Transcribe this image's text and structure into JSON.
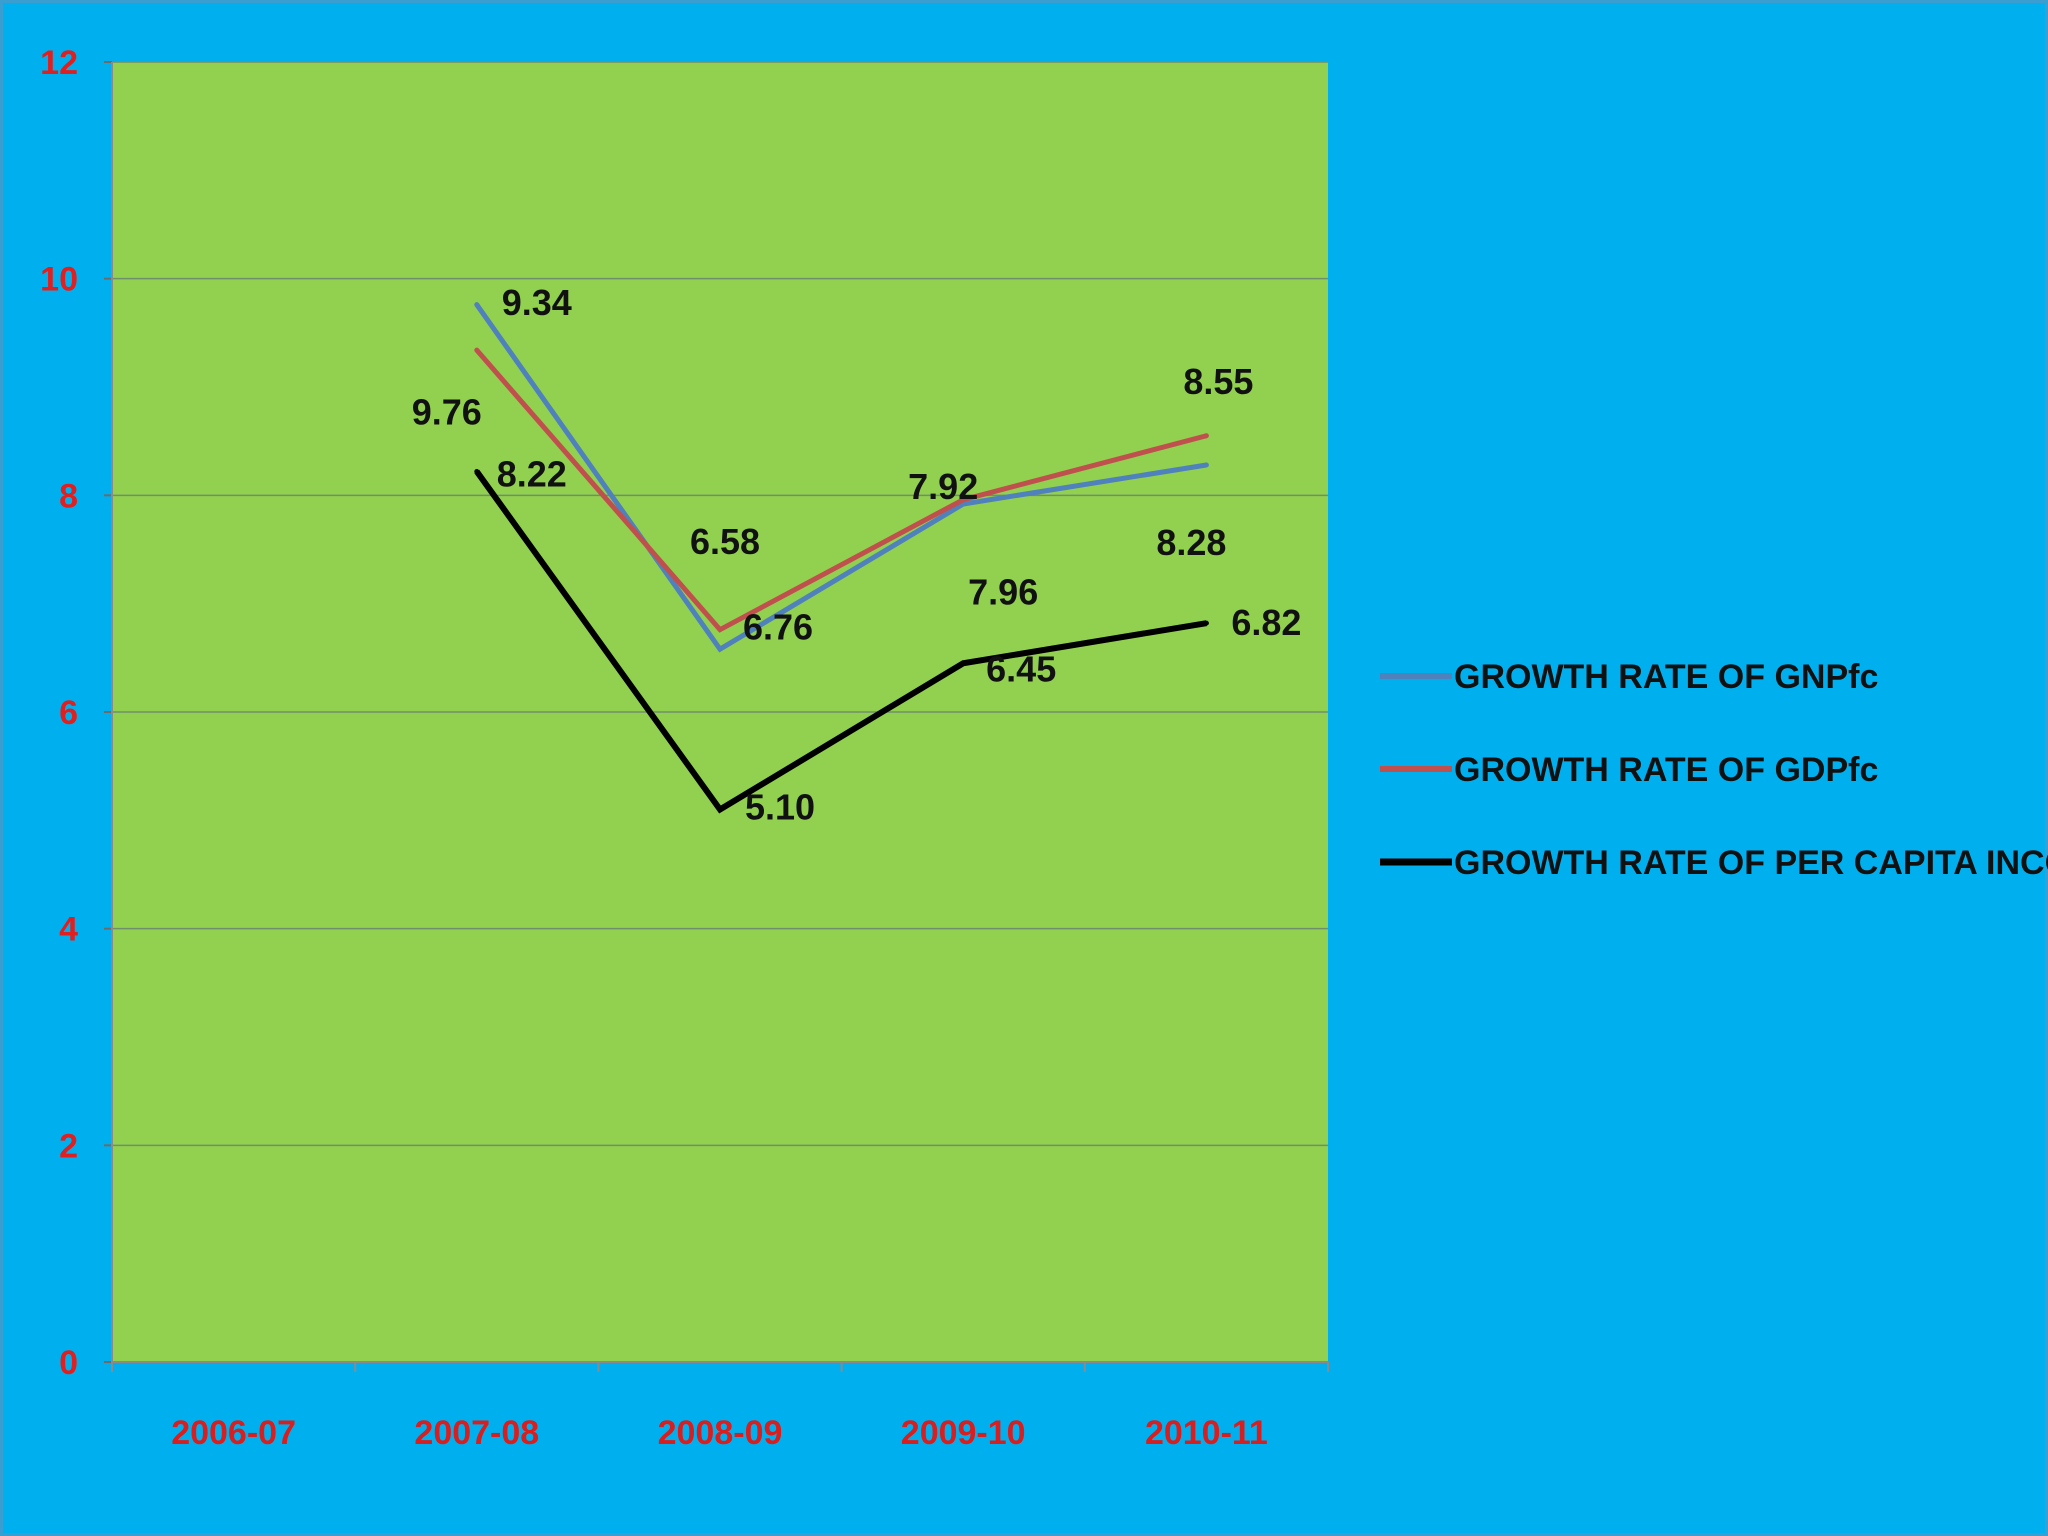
{
  "chart_data": {
    "type": "line",
    "title": "",
    "xlabel": "",
    "ylabel": "",
    "categories": [
      "2006-07",
      "2007-08",
      "2008-09",
      "2009-10",
      "2010-11"
    ],
    "ylim": [
      0,
      12
    ],
    "yticks": [
      0,
      2,
      4,
      6,
      8,
      10,
      12
    ],
    "grid": true,
    "legend_position": "right",
    "colors": {
      "page_background": "#00b0ee",
      "plot_background": "#92d050",
      "tick_labels": "#e02020"
    },
    "series": [
      {
        "name": "GROWTH RATE OF GNPfc",
        "color": "#4f81bd",
        "values": [
          null,
          9.76,
          6.58,
          7.92,
          8.28
        ],
        "labels": [
          "",
          "9.76",
          "6.58",
          "7.92",
          "8.28"
        ]
      },
      {
        "name": "GROWTH RATE OF GDPfc",
        "color": "#c0504d",
        "values": [
          null,
          9.34,
          6.76,
          7.96,
          8.55
        ],
        "labels": [
          "",
          "9.34",
          "6.76",
          "7.96",
          "8.55"
        ]
      },
      {
        "name": "GROWTH RATE OF PER CAPITA INCOME",
        "color": "#000000",
        "values": [
          null,
          8.22,
          5.1,
          6.45,
          6.82
        ],
        "labels": [
          "",
          "8.22",
          "5.10",
          "6.45",
          "6.82"
        ]
      }
    ]
  }
}
